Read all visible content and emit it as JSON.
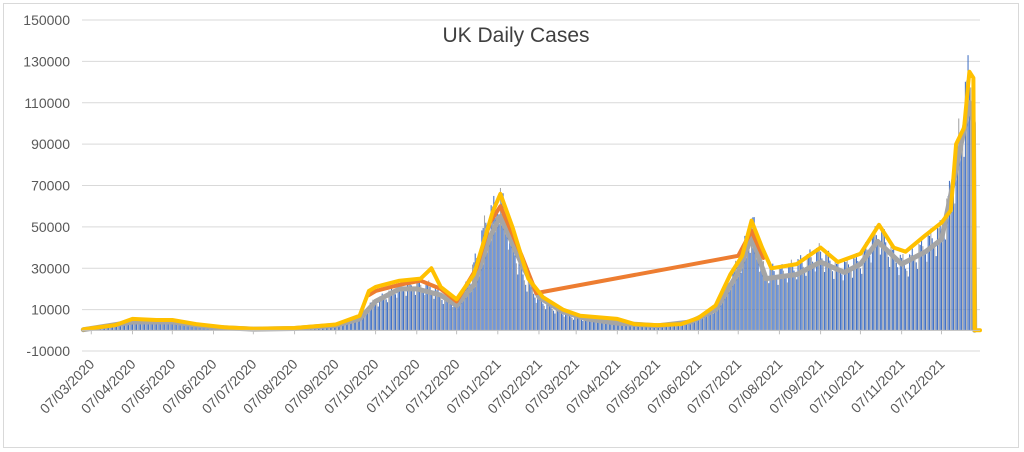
{
  "chart_data": {
    "type": "bar",
    "title": "UK Daily Cases",
    "xlabel": "",
    "ylabel": "",
    "ylim": [
      -10000,
      150000
    ],
    "y_ticks": [
      -10000,
      10000,
      30000,
      50000,
      70000,
      90000,
      110000,
      130000,
      150000
    ],
    "x_tick_labels": [
      "07/03/2020",
      "07/04/2020",
      "07/05/2020",
      "07/06/2020",
      "07/07/2020",
      "07/08/2020",
      "07/09/2020",
      "07/10/2020",
      "07/11/2020",
      "07/12/2020",
      "07/01/2021",
      "07/02/2021",
      "07/03/2021",
      "07/04/2021",
      "07/05/2021",
      "07/06/2021",
      "07/07/2021",
      "07/08/2021",
      "07/09/2021",
      "07/10/2021",
      "07/11/2021",
      "07/12/2021"
    ],
    "x_range": [
      "2020-02-29",
      "2022-01-05"
    ],
    "grid": true,
    "legend": "none",
    "colors": {
      "bars": "#4472c4",
      "bars_alt": "#a5a5a5",
      "line_avg_gray": "#a5a5a5",
      "line_avg_orange": "#ed7d31",
      "line_avg_gold": "#ffc000",
      "grid": "#d9d9d9",
      "axis": "#bfbfbf"
    },
    "series": [
      {
        "type": "bar",
        "values_daily_key_points": [
          [
            "2020-03-01",
            100
          ],
          [
            "2020-03-20",
            1500
          ],
          [
            "2020-04-01",
            3500
          ],
          [
            "2020-04-10",
            5000
          ],
          [
            "2020-04-25",
            4500
          ],
          [
            "2020-05-07",
            4000
          ],
          [
            "2020-05-20",
            2500
          ],
          [
            "2020-06-01",
            1500
          ],
          [
            "2020-06-20",
            1000
          ],
          [
            "2020-07-07",
            600
          ],
          [
            "2020-07-25",
            700
          ],
          [
            "2020-08-07",
            900
          ],
          [
            "2020-08-25",
            1200
          ],
          [
            "2020-09-07",
            2500
          ],
          [
            "2020-09-25",
            6000
          ],
          [
            "2020-10-02",
            12000
          ],
          [
            "2020-10-07",
            14000
          ],
          [
            "2020-10-15",
            17000
          ],
          [
            "2020-10-25",
            21000
          ],
          [
            "2020-11-07",
            22000
          ],
          [
            "2020-11-15",
            22000
          ],
          [
            "2020-11-25",
            17000
          ],
          [
            "2020-12-01",
            15000
          ],
          [
            "2020-12-07",
            14000
          ],
          [
            "2020-12-15",
            22000
          ],
          [
            "2020-12-22",
            35000
          ],
          [
            "2020-12-29",
            52000
          ],
          [
            "2021-01-04",
            58000
          ],
          [
            "2021-01-08",
            66000
          ],
          [
            "2021-01-15",
            50000
          ],
          [
            "2021-01-25",
            28000
          ],
          [
            "2021-02-07",
            15000
          ],
          [
            "2021-02-20",
            10000
          ],
          [
            "2021-03-07",
            6000
          ],
          [
            "2021-03-20",
            5500
          ],
          [
            "2021-04-07",
            3500
          ],
          [
            "2021-04-20",
            2500
          ],
          [
            "2021-05-07",
            2200
          ],
          [
            "2021-05-25",
            2800
          ],
          [
            "2021-06-07",
            6000
          ],
          [
            "2021-06-20",
            11000
          ],
          [
            "2021-07-01",
            26000
          ],
          [
            "2021-07-07",
            32000
          ],
          [
            "2021-07-15",
            46000
          ],
          [
            "2021-07-18",
            52000
          ],
          [
            "2021-07-25",
            30000
          ],
          [
            "2021-08-07",
            28000
          ],
          [
            "2021-08-25",
            33000
          ],
          [
            "2021-09-07",
            38000
          ],
          [
            "2021-09-20",
            30000
          ],
          [
            "2021-10-07",
            34000
          ],
          [
            "2021-10-21",
            48000
          ],
          [
            "2021-11-01",
            36000
          ],
          [
            "2021-11-10",
            32000
          ],
          [
            "2021-11-25",
            42000
          ],
          [
            "2021-12-07",
            48000
          ],
          [
            "2021-12-15",
            70000
          ],
          [
            "2021-12-22",
            100000
          ],
          [
            "2021-12-30",
            130000
          ],
          [
            "2022-01-01",
            0
          ]
        ]
      },
      {
        "type": "line",
        "values_key_points": [
          [
            "2020-03-01",
            300
          ],
          [
            "2020-04-07",
            4000
          ],
          [
            "2020-05-07",
            4000
          ],
          [
            "2020-06-07",
            1500
          ],
          [
            "2020-07-07",
            600
          ],
          [
            "2020-08-07",
            900
          ],
          [
            "2020-09-07",
            2400
          ],
          [
            "2020-09-25",
            5500
          ],
          [
            "2020-10-07",
            14000
          ],
          [
            "2020-10-25",
            20000
          ],
          [
            "2020-11-07",
            20000
          ],
          [
            "2020-11-25",
            17000
          ],
          [
            "2020-12-07",
            12000
          ],
          [
            "2020-12-20",
            22000
          ],
          [
            "2021-01-01",
            45000
          ],
          [
            "2021-01-09",
            55000
          ],
          [
            "2021-01-25",
            32000
          ],
          [
            "2021-02-07",
            16000
          ],
          [
            "2021-02-25",
            9000
          ],
          [
            "2021-03-15",
            5500
          ],
          [
            "2021-04-07",
            3500
          ],
          [
            "2021-05-07",
            2200
          ],
          [
            "2021-06-01",
            4000
          ],
          [
            "2021-06-20",
            10000
          ],
          [
            "2021-07-07",
            28000
          ],
          [
            "2021-07-17",
            45000
          ],
          [
            "2021-07-28",
            25000
          ],
          [
            "2021-08-20",
            27000
          ],
          [
            "2021-09-07",
            33000
          ],
          [
            "2021-09-25",
            28000
          ],
          [
            "2021-10-07",
            32000
          ],
          [
            "2021-10-20",
            43000
          ],
          [
            "2021-11-07",
            32000
          ],
          [
            "2021-11-25",
            38000
          ],
          [
            "2021-12-07",
            44000
          ],
          [
            "2021-12-18",
            78000
          ],
          [
            "2021-12-28",
            110000
          ],
          [
            "2021-12-31",
            100000
          ],
          [
            "2022-01-01",
            0
          ]
        ]
      },
      {
        "type": "line",
        "values_key_points": [
          [
            "2020-10-02",
            17000
          ],
          [
            "2020-10-07",
            19000
          ],
          [
            "2020-10-25",
            22000
          ],
          [
            "2020-11-10",
            24000
          ],
          [
            "2020-11-25",
            20000
          ],
          [
            "2020-12-07",
            14000
          ],
          [
            "2020-12-22",
            30000
          ],
          [
            "2021-01-01",
            52000
          ],
          [
            "2021-01-09",
            60000
          ],
          [
            "2021-01-25",
            36000
          ],
          [
            "2021-02-05",
            18000
          ],
          [
            "2021-07-07",
            36000
          ],
          [
            "2021-07-17",
            48000
          ],
          [
            "2021-07-26",
            35000
          ]
        ]
      },
      {
        "type": "line",
        "values_key_points": [
          [
            "2020-03-01",
            500
          ],
          [
            "2020-03-25",
            2500
          ],
          [
            "2020-04-07",
            5500
          ],
          [
            "2020-04-25",
            5000
          ],
          [
            "2020-05-07",
            5000
          ],
          [
            "2020-05-25",
            3000
          ],
          [
            "2020-06-15",
            1500
          ],
          [
            "2020-07-07",
            800
          ],
          [
            "2020-08-07",
            1100
          ],
          [
            "2020-09-07",
            2800
          ],
          [
            "2020-09-25",
            7000
          ],
          [
            "2020-10-02",
            19000
          ],
          [
            "2020-10-07",
            21000
          ],
          [
            "2020-10-25",
            24000
          ],
          [
            "2020-11-10",
            25000
          ],
          [
            "2020-11-18",
            30000
          ],
          [
            "2020-11-25",
            21000
          ],
          [
            "2020-12-07",
            15000
          ],
          [
            "2020-12-20",
            27000
          ],
          [
            "2020-12-28",
            44000
          ],
          [
            "2021-01-03",
            57000
          ],
          [
            "2021-01-09",
            66000
          ],
          [
            "2021-01-18",
            50000
          ],
          [
            "2021-01-30",
            25000
          ],
          [
            "2021-02-10",
            16000
          ],
          [
            "2021-02-25",
            10000
          ],
          [
            "2021-03-10",
            7000
          ],
          [
            "2021-04-07",
            5500
          ],
          [
            "2021-04-20",
            3000
          ],
          [
            "2021-05-07",
            2500
          ],
          [
            "2021-05-25",
            3000
          ],
          [
            "2021-06-07",
            6000
          ],
          [
            "2021-06-20",
            12000
          ],
          [
            "2021-07-01",
            27000
          ],
          [
            "2021-07-10",
            36000
          ],
          [
            "2021-07-17",
            53000
          ],
          [
            "2021-07-25",
            40000
          ],
          [
            "2021-08-01",
            30000
          ],
          [
            "2021-08-20",
            32000
          ],
          [
            "2021-09-07",
            40000
          ],
          [
            "2021-09-20",
            33000
          ],
          [
            "2021-10-07",
            37000
          ],
          [
            "2021-10-21",
            51000
          ],
          [
            "2021-11-01",
            40000
          ],
          [
            "2021-11-10",
            38000
          ],
          [
            "2021-11-25",
            46000
          ],
          [
            "2021-12-07",
            52000
          ],
          [
            "2021-12-14",
            58000
          ],
          [
            "2021-12-18",
            90000
          ],
          [
            "2021-12-24",
            98000
          ],
          [
            "2021-12-28",
            125000
          ],
          [
            "2021-12-31",
            122000
          ],
          [
            "2022-01-01",
            0
          ],
          [
            "2022-01-05",
            0
          ]
        ]
      }
    ]
  }
}
